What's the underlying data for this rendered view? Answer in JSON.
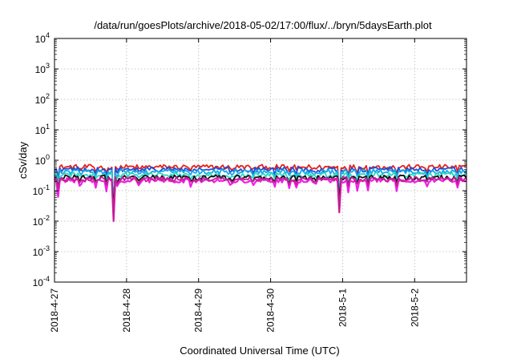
{
  "chart_data": {
    "type": "line",
    "title": "/data/run/goesPlots/archive/2018-05-02/17:00/flux/../bryn/5daysEarth.plot",
    "xlabel": "Coordinated Universal Time (UTC)",
    "ylabel": "cSv/day",
    "yscale": "log",
    "ylim": [
      0.0001,
      10000
    ],
    "xlim": [
      "2018-04-27",
      "2018-05-02 17:00"
    ],
    "grid": true,
    "x_ticks": [
      {
        "value": 0,
        "label": "2018-4-27"
      },
      {
        "value": 1,
        "label": "2018-4-28"
      },
      {
        "value": 2,
        "label": "2018-4-29"
      },
      {
        "value": 3,
        "label": "2018-4-30"
      },
      {
        "value": 4,
        "label": "2018-5-1"
      },
      {
        "value": 5,
        "label": "2018-5-2"
      }
    ],
    "y_ticks": [
      {
        "exp": -4,
        "base": "10",
        "sup": "-4"
      },
      {
        "exp": -3,
        "base": "10",
        "sup": "-3"
      },
      {
        "exp": -2,
        "base": "10",
        "sup": "-2"
      },
      {
        "exp": -1,
        "base": "10",
        "sup": "-1"
      },
      {
        "exp": 0,
        "base": "10",
        "sup": "0"
      },
      {
        "exp": 1,
        "base": "10",
        "sup": "1"
      },
      {
        "exp": 2,
        "base": "10",
        "sup": "2"
      },
      {
        "exp": 3,
        "base": "10",
        "sup": "3"
      },
      {
        "exp": 4,
        "base": "10",
        "sup": "4"
      }
    ],
    "x_end_days": 5.72,
    "series": [
      {
        "color": "#e8211d",
        "level": 0.6,
        "dip_depth": 0.5
      },
      {
        "color": "#1f4fd6",
        "level": 0.5,
        "dip_depth": 0.5
      },
      {
        "color": "#17a8e8",
        "level": 0.42,
        "dip_depth": 0.5
      },
      {
        "color": "#2ad9c0",
        "level": 0.33,
        "dip_depth": 0.5
      },
      {
        "color": "#111111",
        "level": 0.27,
        "dip_depth": 0.5
      },
      {
        "color": "#f01fe6",
        "level": 0.22,
        "dip_depth": 0.9
      },
      {
        "color": "#c02090",
        "level": 0.24,
        "dip_depth": 0.5
      }
    ],
    "dips": [
      {
        "day": 0.05,
        "value": 0.06
      },
      {
        "day": 0.36,
        "value": 0.09
      },
      {
        "day": 0.58,
        "value": 0.07
      },
      {
        "day": 0.72,
        "value": 0.09
      },
      {
        "day": 0.82,
        "value": 0.005
      },
      {
        "day": 0.88,
        "value": 0.08
      },
      {
        "day": 1.18,
        "value": 0.1
      },
      {
        "day": 1.9,
        "value": 0.09
      },
      {
        "day": 2.45,
        "value": 0.08
      },
      {
        "day": 2.75,
        "value": 0.09
      },
      {
        "day": 3.05,
        "value": 0.08
      },
      {
        "day": 3.25,
        "value": 0.07
      },
      {
        "day": 3.35,
        "value": 0.09
      },
      {
        "day": 3.62,
        "value": 0.09
      },
      {
        "day": 3.95,
        "value": 0.005
      },
      {
        "day": 4.08,
        "value": 0.08
      },
      {
        "day": 4.2,
        "value": 0.09
      },
      {
        "day": 4.35,
        "value": 0.09
      },
      {
        "day": 4.75,
        "value": 0.1
      },
      {
        "day": 5.18,
        "value": 0.09
      },
      {
        "day": 5.6,
        "value": 0.1
      }
    ]
  }
}
